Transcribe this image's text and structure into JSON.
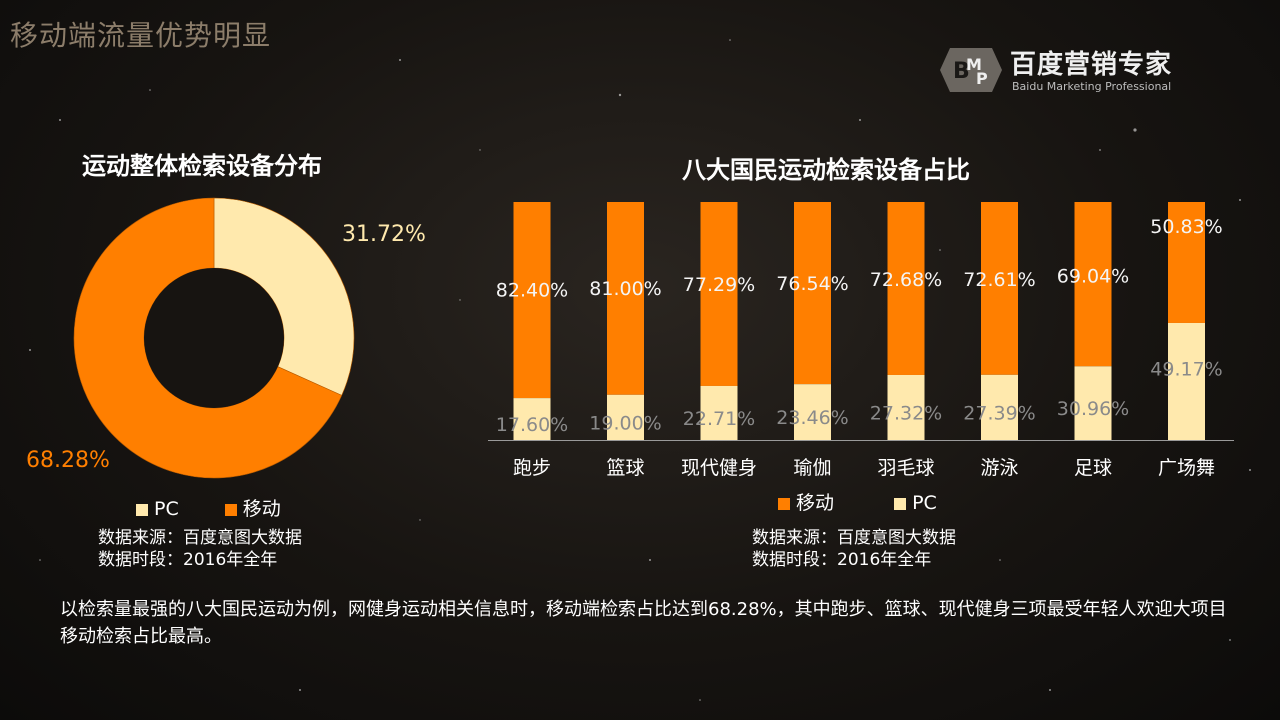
{
  "page_title": "移动端流量优势明显",
  "logo": {
    "name": "百度营销专家",
    "subtitle": "Baidu Marketing Professional"
  },
  "colors": {
    "mobile": "#ff7f00",
    "pc": "#ffe9ad",
    "pc_label": "#ffe9ad",
    "mobile_label": "#ff7f00"
  },
  "summary": "以检索量最强的八大国民运动为例，网健身运动相关信息时，移动端检索占比达到68.28%，其中跑步、篮球、现代健身三项最受年轻人欢迎大项目移动检索占比最高。",
  "chart_data": [
    {
      "type": "pie",
      "title": "运动整体检索设备分布",
      "slices": [
        {
          "name": "PC",
          "value": 31.72,
          "label": "31.72%"
        },
        {
          "name": "移动",
          "value": 68.28,
          "label": "68.28%"
        }
      ],
      "legend": [
        "PC",
        "移动"
      ],
      "source": [
        "数据来源：百度意图大数据",
        "数据时段：2016年全年"
      ]
    },
    {
      "type": "bar",
      "stacked": true,
      "title": "八大国民运动检索设备占比",
      "categories": [
        "跑步",
        "篮球",
        "现代健身",
        "瑜伽",
        "羽毛球",
        "游泳",
        "足球",
        "广场舞"
      ],
      "series": [
        {
          "name": "移动",
          "values": [
            82.4,
            81.0,
            77.29,
            76.54,
            72.68,
            72.61,
            69.04,
            50.83
          ],
          "labels": [
            "82.40%",
            "81.00%",
            "77.29%",
            "76.54%",
            "72.68%",
            "72.61%",
            "69.04%",
            "50.83%"
          ]
        },
        {
          "name": "PC",
          "values": [
            17.6,
            19.0,
            22.71,
            23.46,
            27.32,
            27.39,
            30.96,
            49.17
          ],
          "labels": [
            "17.60%",
            "19.00%",
            "22.71%",
            "23.46%",
            "27.32%",
            "27.39%",
            "30.96%",
            "49.17%"
          ]
        }
      ],
      "ylim": [
        0,
        100
      ],
      "legend": [
        "移动",
        "PC"
      ],
      "source": [
        "数据来源：百度意图大数据",
        "数据时段：2016年全年"
      ]
    }
  ]
}
